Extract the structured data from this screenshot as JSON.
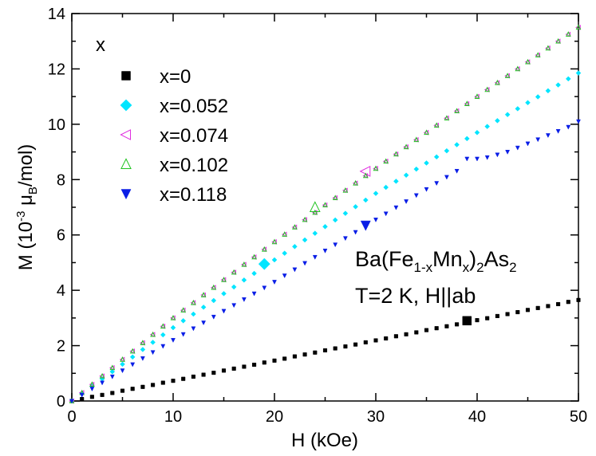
{
  "chart_data": {
    "type": "scatter",
    "xlabel": "H (kOe)",
    "ylabel": [
      "M (10",
      "-3",
      " μ",
      "B",
      "/mol)"
    ],
    "legend_title": "x",
    "annotations": [
      [
        "Ba(Fe",
        "1-x",
        "Mn",
        "x",
        ")",
        "2",
        "As",
        "2"
      ],
      [
        "T=2 K, H||ab"
      ]
    ],
    "xlim": [
      0,
      50
    ],
    "ylim": [
      0,
      14
    ],
    "xticks": [
      0,
      10,
      20,
      30,
      40,
      50
    ],
    "yticks": [
      0,
      2,
      4,
      6,
      8,
      10,
      12,
      14
    ],
    "xminor": [
      5,
      15,
      25,
      35,
      45
    ],
    "yminor": [
      1,
      3,
      5,
      7,
      9,
      11,
      13
    ],
    "x": [
      0,
      1,
      2,
      3,
      4,
      5,
      6,
      7,
      8,
      9,
      10,
      11,
      12,
      13,
      14,
      15,
      16,
      17,
      18,
      19,
      20,
      21,
      22,
      23,
      24,
      25,
      26,
      27,
      28,
      29,
      30,
      31,
      32,
      33,
      34,
      35,
      36,
      37,
      38,
      39,
      40,
      41,
      42,
      43,
      44,
      45,
      46,
      47,
      48,
      49,
      50
    ],
    "series": [
      {
        "name": "x=0",
        "color": "#000000",
        "marker": "square",
        "key_point": [
          39,
          2.9
        ],
        "values": [
          0,
          0.07,
          0.15,
          0.22,
          0.29,
          0.37,
          0.44,
          0.51,
          0.58,
          0.66,
          0.73,
          0.8,
          0.88,
          0.95,
          1.02,
          1.1,
          1.17,
          1.24,
          1.31,
          1.39,
          1.46,
          1.53,
          1.61,
          1.68,
          1.75,
          1.83,
          1.9,
          1.97,
          2.04,
          2.12,
          2.19,
          2.26,
          2.34,
          2.41,
          2.48,
          2.56,
          2.63,
          2.7,
          2.77,
          2.85,
          2.92,
          2.99,
          3.07,
          3.14,
          3.21,
          3.29,
          3.36,
          3.43,
          3.5,
          3.58,
          3.65
        ]
      },
      {
        "name": "x=0.052",
        "color": "#00e5ff",
        "marker": "diamond",
        "key_point": [
          19,
          4.95
        ],
        "values": [
          0,
          0.27,
          0.53,
          0.8,
          1.06,
          1.33,
          1.59,
          1.86,
          2.12,
          2.39,
          2.65,
          2.9,
          3.14,
          3.39,
          3.63,
          3.88,
          4.12,
          4.37,
          4.61,
          4.86,
          5.1,
          5.34,
          5.58,
          5.82,
          6.06,
          6.3,
          6.54,
          6.78,
          7.02,
          7.26,
          7.5,
          7.72,
          7.94,
          8.16,
          8.38,
          8.6,
          8.82,
          9.04,
          9.26,
          9.48,
          9.7,
          9.92,
          10.13,
          10.35,
          10.56,
          10.78,
          10.99,
          11.21,
          11.42,
          11.64,
          11.85
        ]
      },
      {
        "name": "x=0.074",
        "color": "#e02ee0",
        "marker": "triangle-left",
        "key_point": [
          29,
          8.3
        ],
        "values": [
          0,
          0.3,
          0.6,
          0.9,
          1.2,
          1.5,
          1.8,
          2.1,
          2.4,
          2.7,
          3.0,
          3.28,
          3.55,
          3.83,
          4.1,
          4.38,
          4.65,
          4.93,
          5.2,
          5.48,
          5.75,
          6.02,
          6.28,
          6.55,
          6.81,
          7.08,
          7.34,
          7.61,
          7.87,
          8.14,
          8.4,
          8.66,
          8.92,
          9.18,
          9.44,
          9.7,
          9.96,
          10.22,
          10.48,
          10.74,
          11.0,
          11.25,
          11.5,
          11.75,
          12.0,
          12.25,
          12.5,
          12.75,
          13.0,
          13.25,
          13.5
        ]
      },
      {
        "name": "x=0.102",
        "color": "#22c422",
        "marker": "triangle-up",
        "key_point": [
          24,
          7.0
        ],
        "values": [
          0,
          0.3,
          0.6,
          0.9,
          1.2,
          1.5,
          1.8,
          2.1,
          2.4,
          2.7,
          3.0,
          3.28,
          3.55,
          3.83,
          4.1,
          4.38,
          4.65,
          4.93,
          5.2,
          5.48,
          5.75,
          6.02,
          6.28,
          6.55,
          6.81,
          7.08,
          7.34,
          7.61,
          7.87,
          8.14,
          8.4,
          8.66,
          8.92,
          9.18,
          9.44,
          9.7,
          9.96,
          10.22,
          10.48,
          10.74,
          11.0,
          11.25,
          11.5,
          11.75,
          12.0,
          12.25,
          12.5,
          12.75,
          13.0,
          13.25,
          13.5
        ]
      },
      {
        "name": "x=0.118",
        "color": "#0a1ee6",
        "marker": "triangle-down",
        "key_point": [
          29,
          6.35
        ],
        "values": [
          0,
          0.22,
          0.44,
          0.66,
          0.88,
          1.1,
          1.32,
          1.54,
          1.76,
          1.98,
          2.2,
          2.41,
          2.62,
          2.83,
          3.04,
          3.25,
          3.46,
          3.67,
          3.88,
          4.09,
          4.3,
          4.53,
          4.75,
          4.98,
          5.2,
          5.43,
          5.65,
          5.88,
          6.1,
          6.33,
          6.55,
          6.77,
          6.99,
          7.21,
          7.43,
          7.65,
          7.87,
          8.09,
          8.31,
          8.75,
          8.75,
          8.8,
          8.9,
          9.0,
          9.15,
          9.3,
          9.45,
          9.6,
          9.75,
          9.9,
          10.1
        ]
      }
    ]
  }
}
